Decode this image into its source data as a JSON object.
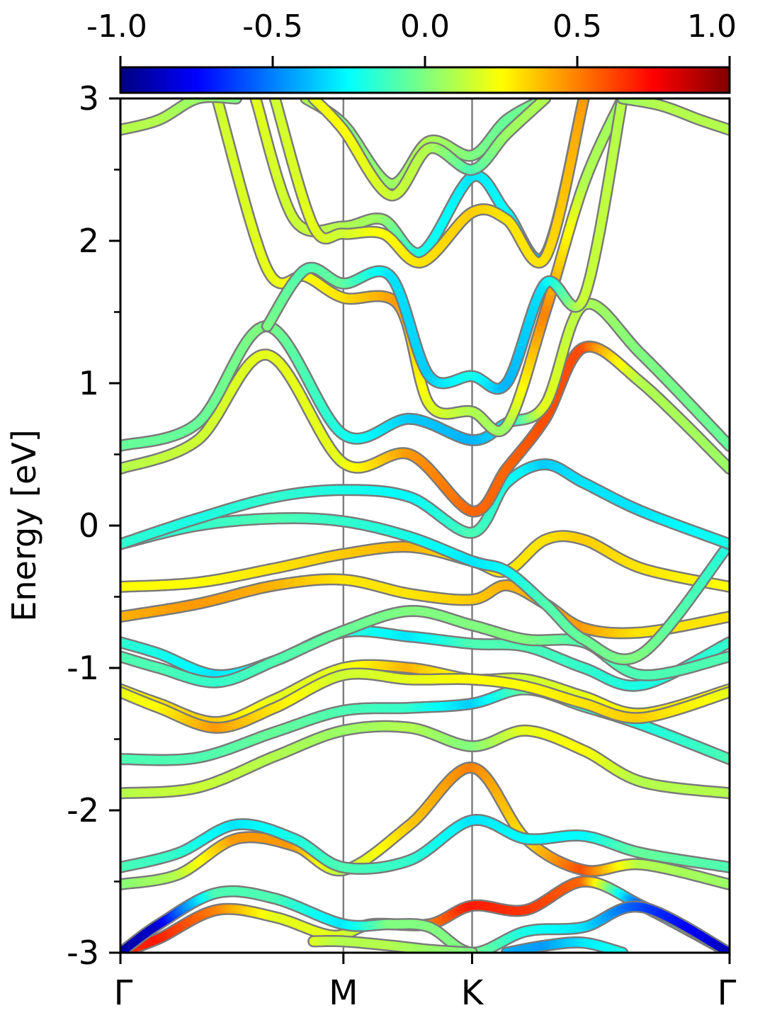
{
  "chart_data": {
    "type": "line",
    "ylabel": "Energy [eV]",
    "ylim": [
      -3,
      3
    ],
    "y_ticks": [
      "3",
      "2",
      "1",
      "0",
      "-1",
      "-2",
      "-3"
    ],
    "y_tick_values": [
      3,
      2,
      1,
      0,
      -1,
      -2,
      -3
    ],
    "y_minor_ticks": [
      2.5,
      1.5,
      0.5,
      -0.5,
      -1.5,
      -2.5
    ],
    "x_labels": [
      "Γ",
      "M",
      "K",
      "Γ"
    ],
    "x_label_positions": [
      0,
      0.5774,
      0.9107,
      1.5774
    ],
    "xlim": [
      0,
      1.5774
    ],
    "colorbar": {
      "ticks": [
        "-1.0",
        "-0.5",
        "0.0",
        "0.5",
        "1.0"
      ],
      "tick_values": [
        -1.0,
        -0.5,
        0.0,
        0.5,
        1.0
      ],
      "range": [
        -1,
        1
      ],
      "colormap": "jet"
    },
    "series": [
      {
        "x": [
          0,
          0.2,
          0.4,
          0.577,
          0.75,
          0.911,
          1.05,
          1.2,
          1.35,
          1.577
        ],
        "y": [
          -1.88,
          -1.84,
          -1.62,
          -1.44,
          -1.42,
          -1.55,
          -1.44,
          -1.58,
          -1.8,
          -1.88
        ],
        "c": [
          0.1,
          0.15,
          0.1,
          0.05,
          0.1,
          0.0,
          0.2,
          0.25,
          0.1,
          0.1
        ]
      },
      {
        "x": [
          0,
          0.2,
          0.4,
          0.577,
          0.75,
          0.911,
          1.05,
          1.2,
          1.35,
          1.577
        ],
        "y": [
          -1.64,
          -1.63,
          -1.45,
          -1.3,
          -1.28,
          -1.25,
          -1.15,
          -1.27,
          -1.4,
          -1.64
        ],
        "c": [
          -0.1,
          -0.1,
          -0.05,
          -0.1,
          -0.15,
          -0.35,
          -0.05,
          -0.15,
          -0.2,
          -0.1
        ]
      },
      {
        "x": [
          0,
          0.1,
          0.25,
          0.4,
          0.577,
          0.75,
          0.911,
          1.05,
          1.2,
          1.35,
          1.577
        ],
        "y": [
          -1.15,
          -1.25,
          -1.38,
          -1.22,
          -1.0,
          -1.0,
          -1.08,
          -1.08,
          -1.2,
          -1.32,
          -1.15
        ],
        "c": [
          0.25,
          0.3,
          0.35,
          0.2,
          0.2,
          0.4,
          0.2,
          0.15,
          0.2,
          0.3,
          0.25
        ]
      },
      {
        "x": [
          0,
          0.1,
          0.25,
          0.4,
          0.577,
          0.75,
          0.911,
          1.05,
          1.2,
          1.35,
          1.577
        ],
        "y": [
          -1.17,
          -1.28,
          -1.42,
          -1.28,
          -1.05,
          -1.08,
          -1.08,
          -1.13,
          -1.25,
          -1.35,
          -1.17
        ],
        "c": [
          0.2,
          0.25,
          0.45,
          0.3,
          0.15,
          0.2,
          0.25,
          0.25,
          0.3,
          0.35,
          0.2
        ]
      },
      {
        "x": [
          0,
          0.1,
          0.25,
          0.4,
          0.577,
          0.75,
          0.911,
          1.05,
          1.2,
          1.35,
          1.577
        ],
        "y": [
          -0.82,
          -0.9,
          -1.05,
          -0.95,
          -0.75,
          -0.78,
          -0.83,
          -0.85,
          -1.0,
          -1.12,
          -0.82
        ],
        "c": [
          -0.15,
          -0.2,
          -0.3,
          -0.2,
          -0.15,
          -0.3,
          -0.1,
          -0.1,
          -0.15,
          -0.2,
          -0.15
        ]
      },
      {
        "x": [
          0,
          0.1,
          0.25,
          0.4,
          0.577,
          0.75,
          0.911,
          1.05,
          1.2,
          1.35,
          1.577
        ],
        "y": [
          -0.92,
          -1.0,
          -1.1,
          -0.95,
          -0.74,
          -0.6,
          -0.7,
          -0.8,
          -0.82,
          -1.05,
          -0.92
        ],
        "c": [
          -0.1,
          -0.1,
          -0.15,
          -0.1,
          -0.05,
          0.0,
          0.0,
          0.0,
          -0.1,
          -0.1,
          -0.1
        ]
      },
      {
        "x": [
          0,
          0.2,
          0.4,
          0.577,
          0.75,
          0.911,
          1.0,
          1.1,
          1.2,
          1.35,
          1.577
        ],
        "y": [
          -0.64,
          -0.55,
          -0.42,
          -0.38,
          -0.48,
          -0.52,
          -0.42,
          -0.55,
          -0.72,
          -0.75,
          -0.64
        ],
        "c": [
          0.4,
          0.45,
          0.4,
          0.3,
          0.3,
          0.35,
          0.4,
          0.4,
          0.45,
          0.3,
          0.3
        ]
      },
      {
        "x": [
          0,
          0.2,
          0.4,
          0.577,
          0.75,
          0.911,
          1.0,
          1.1,
          1.2,
          1.35,
          1.577
        ],
        "y": [
          -0.43,
          -0.4,
          -0.3,
          -0.2,
          -0.15,
          -0.25,
          -0.32,
          -0.1,
          -0.1,
          -0.3,
          -0.43
        ],
        "c": [
          0.25,
          0.25,
          0.3,
          0.35,
          0.4,
          0.3,
          0.3,
          0.3,
          0.35,
          0.3,
          0.25
        ]
      },
      {
        "x": [
          0,
          0.2,
          0.4,
          0.577,
          0.75,
          0.911,
          1.0,
          1.1,
          1.2,
          1.35,
          1.577
        ],
        "y": [
          -0.13,
          0.0,
          0.05,
          0.03,
          -0.08,
          -0.25,
          -0.32,
          -0.55,
          -0.8,
          -0.9,
          -0.13
        ],
        "c": [
          -0.2,
          -0.15,
          -0.1,
          -0.15,
          -0.2,
          -0.3,
          -0.25,
          -0.1,
          -0.05,
          0.0,
          -0.2
        ]
      },
      {
        "x": [
          0,
          0.2,
          0.4,
          0.577,
          0.75,
          0.911,
          1.0,
          1.1,
          1.2,
          1.35,
          1.577
        ],
        "y": [
          -0.13,
          0.05,
          0.2,
          0.25,
          0.2,
          -0.05,
          0.3,
          0.43,
          0.3,
          0.1,
          -0.13
        ],
        "c": [
          -0.15,
          -0.2,
          -0.15,
          -0.2,
          -0.25,
          -0.1,
          -0.2,
          -0.35,
          -0.3,
          -0.3,
          -0.2
        ]
      },
      {
        "x": [
          0,
          0.2,
          0.38,
          0.577,
          0.75,
          0.911,
          1.0,
          1.1,
          1.2,
          1.35,
          1.577
        ],
        "y": [
          0.4,
          0.6,
          1.2,
          0.44,
          0.5,
          0.1,
          0.4,
          0.75,
          1.25,
          1.0,
          0.4
        ],
        "c": [
          0.1,
          0.15,
          0.2,
          0.2,
          0.45,
          0.55,
          0.55,
          0.6,
          0.6,
          0.1,
          0.05
        ]
      },
      {
        "x": [
          0,
          0.2,
          0.38,
          0.577,
          0.75,
          0.911,
          1.0,
          1.1,
          1.2,
          1.35,
          1.577
        ],
        "y": [
          0.56,
          0.72,
          1.4,
          0.64,
          0.75,
          0.6,
          0.72,
          0.85,
          1.55,
          1.2,
          0.56
        ],
        "c": [
          -0.05,
          -0.05,
          0.0,
          -0.2,
          -0.35,
          -0.4,
          -0.3,
          0.2,
          0.1,
          0.0,
          -0.05
        ]
      },
      {
        "x": [
          0.25,
          0.38,
          0.48,
          0.577,
          0.72,
          0.8,
          0.911,
          1.0,
          1.1,
          1.2,
          1.3
        ],
        "y": [
          3.0,
          1.8,
          1.75,
          1.6,
          1.55,
          0.85,
          0.8,
          0.7,
          1.5,
          2.4,
          3.0
        ],
        "c": [
          0.15,
          0.2,
          0.25,
          0.3,
          0.45,
          0.2,
          0.1,
          0.05,
          0.5,
          0.1,
          0.05
        ]
      },
      {
        "x": [
          0.38,
          0.48,
          0.577,
          0.7,
          0.8,
          0.911,
          1.0,
          1.1,
          1.2,
          1.3
        ],
        "y": [
          1.4,
          1.8,
          1.7,
          1.75,
          1.05,
          1.05,
          1.0,
          1.7,
          1.6,
          3.0
        ],
        "c": [
          0.0,
          -0.1,
          -0.05,
          -0.3,
          -0.35,
          -0.2,
          -0.4,
          -0.3,
          0.15,
          0.1
        ]
      },
      {
        "x": [
          0.35,
          0.45,
          0.577,
          0.68,
          0.78,
          0.911,
          1.0,
          1.1,
          1.2
        ],
        "y": [
          3.0,
          2.15,
          2.1,
          2.15,
          1.92,
          2.45,
          2.2,
          1.9,
          3.0
        ],
        "c": [
          0.2,
          0.15,
          0.1,
          0.05,
          -0.2,
          -0.3,
          -0.25,
          -0.4,
          -0.3
        ]
      },
      {
        "x": [
          0.4,
          0.5,
          0.577,
          0.68,
          0.78,
          0.911,
          1.0,
          1.1,
          1.2
        ],
        "y": [
          3.0,
          2.1,
          2.05,
          2.05,
          1.85,
          2.2,
          2.15,
          1.88,
          3.0
        ],
        "c": [
          0.15,
          0.2,
          0.15,
          0.25,
          0.3,
          0.35,
          0.3,
          0.3,
          0.45
        ]
      },
      {
        "x": [
          0.48,
          0.577,
          0.7,
          0.8,
          0.911,
          1.0,
          1.1
        ],
        "y": [
          3.0,
          2.82,
          2.4,
          2.7,
          2.6,
          2.85,
          3.0
        ],
        "c": [
          0.1,
          0.0,
          0.05,
          0.1,
          0.0,
          -0.05,
          0.0
        ]
      },
      {
        "x": [
          0.5,
          0.577,
          0.7,
          0.8,
          0.911,
          1.0,
          1.1
        ],
        "y": [
          3.0,
          2.78,
          2.32,
          2.65,
          2.5,
          2.75,
          3.0
        ],
        "c": [
          0.2,
          0.25,
          0.15,
          0.1,
          -0.1,
          0.05,
          0.1
        ]
      },
      {
        "x": [
          0,
          0.1,
          0.2,
          0.3
        ],
        "y": [
          2.78,
          2.85,
          3.0,
          3.0
        ],
        "c": [
          0.1,
          0.1,
          0.05,
          0.0
        ]
      },
      {
        "x": [
          1.3,
          1.4,
          1.5,
          1.577
        ],
        "y": [
          3.0,
          2.95,
          2.85,
          2.78
        ],
        "c": [
          0.05,
          0.1,
          0.1,
          0.1
        ]
      },
      {
        "x": [
          0,
          0.15,
          0.3,
          0.45,
          0.577,
          0.75,
          0.911,
          1.05,
          1.2,
          1.35,
          1.577
        ],
        "y": [
          -2.52,
          -2.45,
          -2.2,
          -2.25,
          -2.42,
          -2.1,
          -1.7,
          -2.2,
          -2.42,
          -2.38,
          -2.52
        ],
        "c": [
          0.0,
          0.1,
          0.45,
          0.45,
          0.1,
          0.35,
          0.5,
          0.3,
          0.6,
          0.1,
          0.05
        ]
      },
      {
        "x": [
          0,
          0.15,
          0.3,
          0.45,
          0.577,
          0.75,
          0.911,
          1.05,
          1.2,
          1.35,
          1.577
        ],
        "y": [
          -2.4,
          -2.3,
          -2.1,
          -2.2,
          -2.4,
          -2.35,
          -2.07,
          -2.2,
          -2.18,
          -2.3,
          -2.4
        ],
        "c": [
          -0.1,
          -0.15,
          -0.3,
          -0.2,
          -0.1,
          -0.15,
          -0.3,
          -0.25,
          -0.25,
          -0.05,
          -0.1
        ]
      },
      {
        "x": [
          0,
          0.1,
          0.25,
          0.4,
          0.55,
          0.65,
          0.8,
          0.911,
          1.05,
          1.2,
          1.35,
          1.577
        ],
        "y": [
          -3.0,
          -2.9,
          -2.7,
          -2.75,
          -2.88,
          -2.8,
          -2.8,
          -2.67,
          -2.7,
          -2.5,
          -2.67,
          -3.0
        ],
        "c": [
          0.65,
          0.7,
          0.5,
          0.2,
          0.2,
          0.1,
          0.5,
          0.7,
          0.65,
          0.55,
          -0.6,
          0.7
        ]
      },
      {
        "x": [
          0,
          0.1,
          0.25,
          0.4,
          0.577,
          0.7,
          0.8,
          0.911,
          1.05,
          1.2,
          1.35,
          1.577
        ],
        "y": [
          -3.0,
          -2.8,
          -2.58,
          -2.62,
          -2.8,
          -2.8,
          -2.82,
          -3.0,
          -2.85,
          -2.82,
          -2.68,
          -3.0
        ],
        "c": [
          -0.95,
          -0.85,
          -0.1,
          -0.1,
          -0.3,
          0.0,
          0.0,
          0.0,
          -0.2,
          -0.3,
          -0.6,
          -0.9
        ]
      },
      {
        "x": [
          0.5,
          0.577,
          0.7,
          0.8,
          0.911
        ],
        "y": [
          -2.92,
          -2.92,
          -2.95,
          -2.98,
          -3.0
        ],
        "c": [
          0.2,
          0.1,
          0.1,
          0.05,
          0.0
        ]
      },
      {
        "x": [
          1.0,
          1.1,
          1.2,
          1.3
        ],
        "y": [
          -3.0,
          -2.95,
          -2.93,
          -3.0
        ],
        "c": [
          -0.4,
          -0.45,
          -0.3,
          -0.2
        ]
      }
    ]
  }
}
